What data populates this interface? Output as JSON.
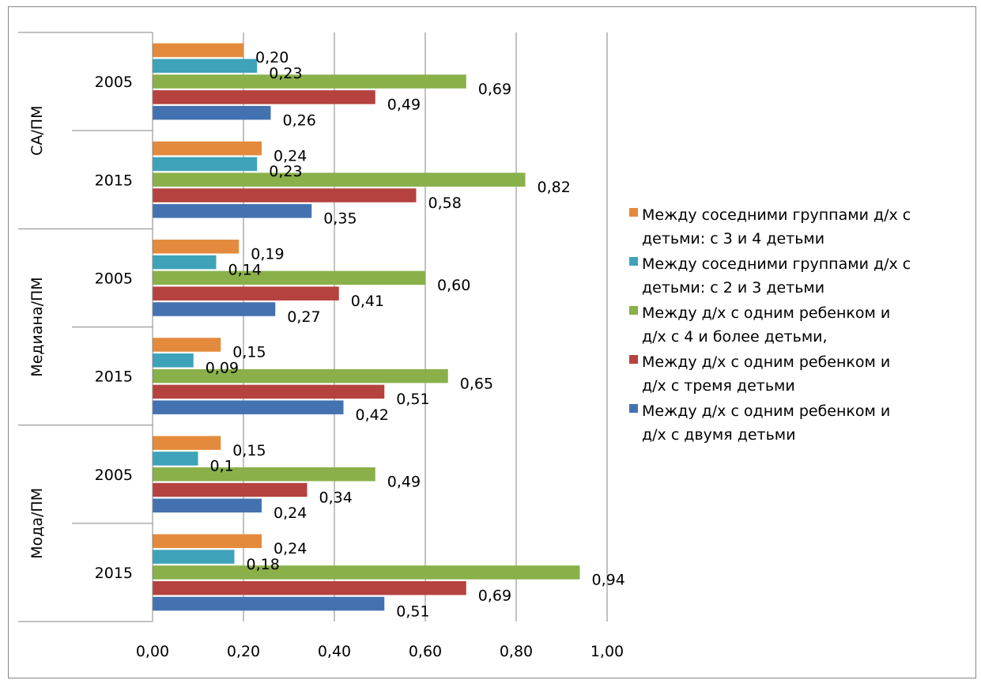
{
  "chart_data": {
    "type": "bar",
    "orientation": "horizontal",
    "x_ticks": [
      "0,00",
      "0,20",
      "0,40",
      "0,60",
      "0,80",
      "1,00"
    ],
    "xlim": [
      0,
      1
    ],
    "grid": true,
    "legend_position": "right",
    "groups": [
      {
        "name": "СА/ПМ",
        "years": [
          {
            "label": "2005",
            "values": [
              0.2,
              0.23,
              0.69,
              0.49,
              0.26
            ],
            "labels": [
              "0,20",
              "0,23",
              "0,69",
              "0,49",
              "0,26"
            ]
          },
          {
            "label": "2015",
            "values": [
              0.24,
              0.23,
              0.82,
              0.58,
              0.35
            ],
            "labels": [
              "0,24",
              "0,23",
              "0,82",
              "0,58",
              "0,35"
            ]
          }
        ]
      },
      {
        "name": "Медиана/ПМ",
        "years": [
          {
            "label": "2005",
            "values": [
              0.19,
              0.14,
              0.6,
              0.41,
              0.27
            ],
            "labels": [
              "0,19",
              "0,14",
              "0,60",
              "0,41",
              "0,27"
            ]
          },
          {
            "label": "2015",
            "values": [
              0.15,
              0.09,
              0.65,
              0.51,
              0.42
            ],
            "labels": [
              "0,15",
              "0,09",
              "0,65",
              "0,51",
              "0,42"
            ]
          }
        ]
      },
      {
        "name": "Мода/ПМ",
        "years": [
          {
            "label": "2005",
            "values": [
              0.15,
              0.1,
              0.49,
              0.34,
              0.24
            ],
            "labels": [
              "0,15",
              "0,1",
              "0,49",
              "0,34",
              "0,24"
            ]
          },
          {
            "label": "2015",
            "values": [
              0.24,
              0.18,
              0.94,
              0.69,
              0.51
            ],
            "labels": [
              "0,24",
              "0,18",
              "0,94",
              "0,69",
              "0,51"
            ]
          }
        ]
      }
    ],
    "series": [
      {
        "name": "Между соседними группами д/х с детьми: с 3 и 4 детьми",
        "legend_lines": [
          "Между соседними группами д/х с",
          "детьми: с 3 и 4 детьми"
        ],
        "color": "#E48A3C"
      },
      {
        "name": "Между соседними группами д/х с детьми: с 2 и 3 детьми",
        "legend_lines": [
          "Между соседними группами д/х с",
          "детьми: с 2 и 3 детьми"
        ],
        "color": "#3EA3B9"
      },
      {
        "name": "Между д/х с одним ребенком и д/х с 4 и более детьми,",
        "legend_lines": [
          "Между д/х с одним ребенком и",
          "д/х   с 4 и более детьми,"
        ],
        "color": "#8AB04A"
      },
      {
        "name": "Между д/х с одним ребенком и д/х с тремя детьми",
        "legend_lines": [
          "Между д/х с одним ребенком и",
          "д/х   с тремя детьми"
        ],
        "color": "#B5423F"
      },
      {
        "name": "Между д/х с одним ребенком и д/х с двумя детьми",
        "legend_lines": [
          "Между д/х с одним ребенком и",
          "д/х   с двумя детьми"
        ],
        "color": "#4472B0"
      }
    ]
  }
}
